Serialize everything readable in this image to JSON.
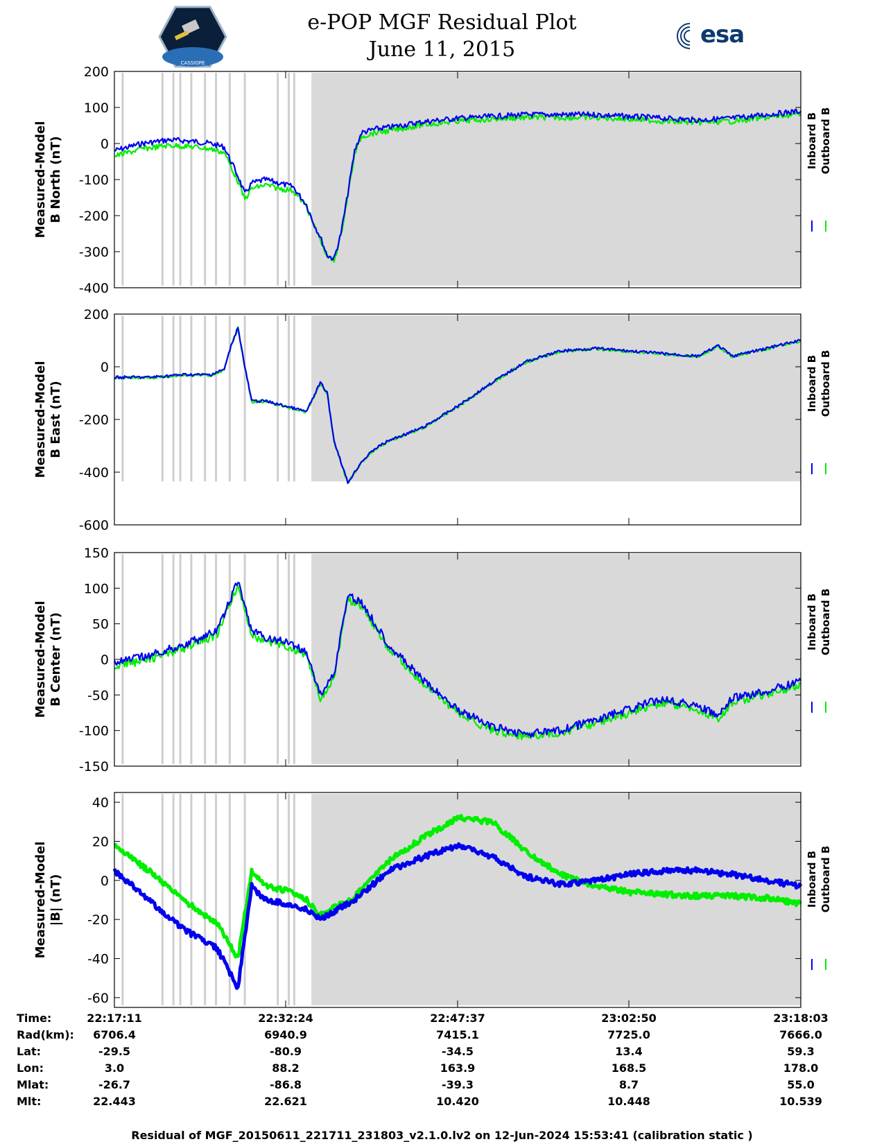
{
  "header": {
    "title_line1": "e-POP MGF Residual Plot",
    "title_line2": "June 11, 2015",
    "mission_logo_text": "CASSIOPE",
    "esa_logo_text": "esa"
  },
  "colors": {
    "inboard": "#0000ee",
    "outboard": "#00ee00",
    "shade": "#d9d9d9",
    "stripe": "#cfcfcf"
  },
  "legend": {
    "inboard": "Inboard B",
    "outboard": "Outboard B"
  },
  "chart_data": [
    {
      "type": "line",
      "title": "B North",
      "ylabel_line1": "Measured-Model",
      "ylabel_line2": "B North (nT)",
      "ylim": [
        -400,
        200
      ],
      "yticks": [
        200,
        100,
        0,
        -100,
        -200,
        -300,
        -400
      ],
      "x": [
        0.0,
        2.0,
        4.0,
        6.0,
        8.0,
        10.0,
        12.0,
        14.0,
        16.0,
        18.0,
        19.0,
        20.0,
        22.0,
        24.0,
        26.0,
        28.0,
        29.0,
        30.0,
        31.0,
        32.0,
        33.0,
        34.0,
        35.0,
        36.0,
        38.0,
        40.0,
        45.0,
        50.0,
        55.0,
        60.0,
        65.0,
        70.0,
        75.0,
        80.0,
        85.0,
        90.0,
        95.0,
        100.0
      ],
      "series": [
        {
          "name": "Inboard B",
          "values": [
            -20,
            -10,
            0,
            5,
            10,
            8,
            5,
            0,
            -10,
            -90,
            -140,
            -110,
            -100,
            -110,
            -120,
            -170,
            -220,
            -260,
            -310,
            -320,
            -250,
            -140,
            -20,
            30,
            40,
            45,
            60,
            70,
            75,
            80,
            80,
            80,
            75,
            70,
            65,
            70,
            80,
            90
          ]
        },
        {
          "name": "Outboard B",
          "values": [
            -35,
            -25,
            -15,
            -10,
            -5,
            -7,
            -10,
            -15,
            -25,
            -105,
            -155,
            -125,
            -115,
            -125,
            -130,
            -175,
            -225,
            -265,
            -315,
            -325,
            -255,
            -145,
            -30,
            20,
            30,
            35,
            52,
            62,
            68,
            72,
            72,
            72,
            68,
            62,
            58,
            62,
            72,
            82
          ]
        }
      ]
    },
    {
      "type": "line",
      "title": "B East",
      "ylabel_line1": "Measured-Model",
      "ylabel_line2": "B East (nT)",
      "ylim": [
        -600,
        200
      ],
      "yticks": [
        200,
        0,
        -200,
        -400,
        -600
      ],
      "x": [
        0.0,
        5.0,
        10.0,
        14.0,
        16.0,
        17.0,
        18.0,
        19.0,
        20.0,
        22.0,
        25.0,
        28.0,
        30.0,
        31.0,
        32.0,
        34.0,
        36.0,
        38.0,
        40.0,
        45.0,
        50.0,
        55.0,
        60.0,
        65.0,
        70.0,
        75.0,
        80.0,
        85.0,
        88.0,
        90.0,
        95.0,
        100.0
      ],
      "series": [
        {
          "name": "Inboard B",
          "values": [
            -40,
            -40,
            -30,
            -30,
            -10,
            80,
            150,
            0,
            -130,
            -130,
            -150,
            -170,
            -60,
            -100,
            -280,
            -440,
            -360,
            -310,
            -280,
            -230,
            -150,
            -60,
            20,
            60,
            70,
            60,
            50,
            40,
            80,
            40,
            70,
            100
          ]
        },
        {
          "name": "Outboard B",
          "values": [
            -42,
            -42,
            -32,
            -32,
            -12,
            78,
            148,
            -2,
            -132,
            -132,
            -152,
            -172,
            -62,
            -102,
            -282,
            -442,
            -362,
            -312,
            -282,
            -232,
            -152,
            -62,
            18,
            58,
            68,
            58,
            48,
            38,
            78,
            38,
            68,
            98
          ]
        }
      ]
    },
    {
      "type": "line",
      "title": "B Center",
      "ylabel_line1": "Measured-Model",
      "ylabel_line2": "B Center (nT)",
      "ylim": [
        -150,
        150
      ],
      "yticks": [
        150,
        100,
        50,
        0,
        -50,
        -100,
        -150
      ],
      "x": [
        0.0,
        5.0,
        10.0,
        15.0,
        18.0,
        20.0,
        22.0,
        25.0,
        28.0,
        30.0,
        32.0,
        34.0,
        36.0,
        38.0,
        40.0,
        45.0,
        50.0,
        55.0,
        60.0,
        65.0,
        70.0,
        75.0,
        80.0,
        85.0,
        88.0,
        90.0,
        95.0,
        100.0
      ],
      "series": [
        {
          "name": "Inboard B",
          "values": [
            -5,
            5,
            20,
            40,
            110,
            40,
            30,
            25,
            10,
            -50,
            -20,
            90,
            80,
            50,
            20,
            -30,
            -70,
            -95,
            -105,
            -100,
            -85,
            -70,
            -55,
            -65,
            -80,
            -55,
            -45,
            -30
          ]
        },
        {
          "name": "Outboard B",
          "values": [
            -10,
            0,
            15,
            35,
            105,
            35,
            25,
            20,
            5,
            -55,
            -25,
            85,
            75,
            45,
            15,
            -35,
            -75,
            -100,
            -108,
            -103,
            -90,
            -75,
            -60,
            -70,
            -85,
            -60,
            -50,
            -35
          ]
        }
      ]
    },
    {
      "type": "line",
      "title": "|B|",
      "ylabel_line1": "Measured-Model",
      "ylabel_line2": "|B| (nT)",
      "ylim": [
        -65,
        45
      ],
      "yticks": [
        40,
        20,
        0,
        -20,
        -40,
        -60
      ],
      "x": [
        0.0,
        5.0,
        10.0,
        15.0,
        18.0,
        20.0,
        22.0,
        25.0,
        28.0,
        30.0,
        35.0,
        40.0,
        45.0,
        50.0,
        55.0,
        60.0,
        65.0,
        70.0,
        75.0,
        80.0,
        85.0,
        90.0,
        95.0,
        100.0
      ],
      "series": [
        {
          "name": "Inboard B",
          "values": [
            5,
            -10,
            -25,
            -35,
            -55,
            -3,
            -10,
            -12,
            -15,
            -20,
            -10,
            5,
            12,
            18,
            12,
            2,
            -2,
            0,
            3,
            5,
            5,
            3,
            0,
            -3
          ]
        },
        {
          "name": "Outboard B",
          "values": [
            18,
            5,
            -10,
            -22,
            -40,
            5,
            -3,
            -5,
            -10,
            -18,
            -8,
            10,
            22,
            32,
            30,
            15,
            3,
            -3,
            -6,
            -7,
            -8,
            -8,
            -9,
            -12
          ]
        }
      ]
    }
  ],
  "data_gap_stripes_pct": [
    1.2,
    7.0,
    8.6,
    9.6,
    11.2,
    13.2,
    14.8,
    16.8,
    19.0,
    23.8,
    25.4,
    26.2
  ],
  "shaded_start_pct": 28.7,
  "ephemeris": {
    "labels": [
      "Time:",
      "Rad(km):",
      "Lat:",
      "Lon:",
      "Mlat:",
      "Mlt:"
    ],
    "columns": [
      [
        "22:17:11",
        "6706.4",
        "-29.5",
        "3.0",
        "-26.7",
        "22.443"
      ],
      [
        "22:32:24",
        "6940.9",
        "-80.9",
        "88.2",
        "-86.8",
        "22.621"
      ],
      [
        "22:47:37",
        "7415.1",
        "-34.5",
        "163.9",
        "-39.3",
        "10.420"
      ],
      [
        "23:02:50",
        "7725.0",
        "13.4",
        "168.5",
        "8.7",
        "10.448"
      ],
      [
        "23:18:03",
        "7666.0",
        "59.3",
        "178.0",
        "55.0",
        "10.539"
      ]
    ]
  },
  "footer": "Residual of MGF_20150611_221711_231803_v2.1.0.lv2 on 12-Jun-2024 15:53:41 (calibration static )"
}
